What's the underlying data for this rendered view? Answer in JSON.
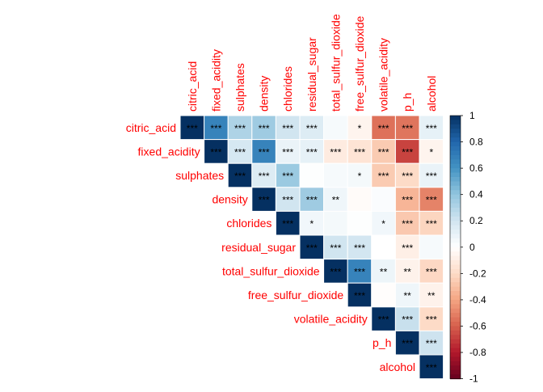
{
  "chart_data": {
    "type": "heatmap",
    "subtype": "correlation-upper-triangle",
    "variables": [
      "citric_acid",
      "fixed_acidity",
      "sulphates",
      "density",
      "chlorides",
      "residual_sugar",
      "total_sulfur_dioxide",
      "free_sulfur_dioxide",
      "volatile_acidity",
      "p_h",
      "alcohol"
    ],
    "matrix": [
      [
        1,
        0.67,
        0.31,
        0.36,
        0.2,
        0.15,
        0.04,
        -0.06,
        -0.55,
        -0.54,
        0.11
      ],
      [
        0.67,
        1,
        0.18,
        0.67,
        0.09,
        0.11,
        -0.11,
        -0.15,
        -0.26,
        -0.68,
        -0.06
      ],
      [
        0.31,
        0.18,
        1,
        0.15,
        0.37,
        0.01,
        0.04,
        0.05,
        -0.26,
        -0.2,
        0.09
      ],
      [
        0.36,
        0.67,
        0.15,
        1,
        0.2,
        0.36,
        0.07,
        -0.02,
        0.02,
        -0.34,
        -0.5
      ],
      [
        0.2,
        0.09,
        0.37,
        0.2,
        1,
        0.06,
        0.05,
        0.01,
        0.06,
        -0.27,
        -0.22
      ],
      [
        0.15,
        0.11,
        0.01,
        0.36,
        0.06,
        1,
        0.2,
        0.19,
        0,
        -0.09,
        0.04
      ],
      [
        0.04,
        -0.11,
        0.04,
        0.07,
        0.05,
        0.2,
        1,
        0.67,
        0.08,
        -0.07,
        -0.21
      ],
      [
        -0.06,
        -0.15,
        0.05,
        -0.02,
        0.01,
        0.19,
        0.67,
        1,
        -0.01,
        0.07,
        -0.07
      ],
      [
        -0.55,
        -0.26,
        -0.26,
        0.02,
        0.06,
        0,
        0.08,
        -0.01,
        1,
        0.23,
        -0.2
      ],
      [
        -0.54,
        -0.68,
        -0.2,
        -0.34,
        -0.27,
        -0.09,
        -0.07,
        0.07,
        0.23,
        1,
        0.21
      ],
      [
        0.11,
        -0.06,
        0.09,
        -0.5,
        -0.22,
        0.04,
        -0.21,
        -0.07,
        -0.2,
        0.21,
        1
      ]
    ],
    "significance": [
      [
        "***",
        "***",
        "***",
        "***",
        "***",
        "***",
        "",
        "*",
        "***",
        "***",
        "***"
      ],
      [
        "",
        "***",
        "***",
        "***",
        "***",
        "***",
        "***",
        "***",
        "***",
        "***",
        "*"
      ],
      [
        "",
        "",
        "***",
        "***",
        "***",
        "",
        "",
        "*",
        "***",
        "***",
        "***"
      ],
      [
        "",
        "",
        "",
        "***",
        "***",
        "***",
        "**",
        "",
        "",
        "***",
        "***"
      ],
      [
        "",
        "",
        "",
        "",
        "***",
        "*",
        "",
        "",
        "*",
        "***",
        "***"
      ],
      [
        "",
        "",
        "",
        "",
        "",
        "***",
        "***",
        "***",
        "",
        "***",
        ""
      ],
      [
        "",
        "",
        "",
        "",
        "",
        "",
        "***",
        "***",
        "**",
        "**",
        "***"
      ],
      [
        "",
        "",
        "",
        "",
        "",
        "",
        "",
        "***",
        "",
        "**",
        "**"
      ],
      [
        "",
        "",
        "",
        "",
        "",
        "",
        "",
        "",
        "***",
        "***",
        "***"
      ],
      [
        "",
        "",
        "",
        "",
        "",
        "",
        "",
        "",
        "",
        "***",
        "***"
      ],
      [
        "",
        "",
        "",
        "",
        "",
        "",
        "",
        "",
        "",
        "",
        "***"
      ]
    ],
    "colorbar": {
      "range": [
        -1,
        1
      ],
      "ticks": [
        "1",
        "0.8",
        "0.6",
        "0.4",
        "0.2",
        "0",
        "-0.2",
        "-0.4",
        "-0.6",
        "-0.8",
        "-1"
      ],
      "placement": "right"
    },
    "colors": {
      "palette": [
        "#67001f",
        "#b2182b",
        "#d6604d",
        "#f4a582",
        "#fddbc7",
        "#ffffff",
        "#d1e5f0",
        "#92c5de",
        "#4393c3",
        "#2166ac",
        "#053061"
      ],
      "label_color": "#ff0000",
      "grid_color": "#ffffff"
    }
  }
}
